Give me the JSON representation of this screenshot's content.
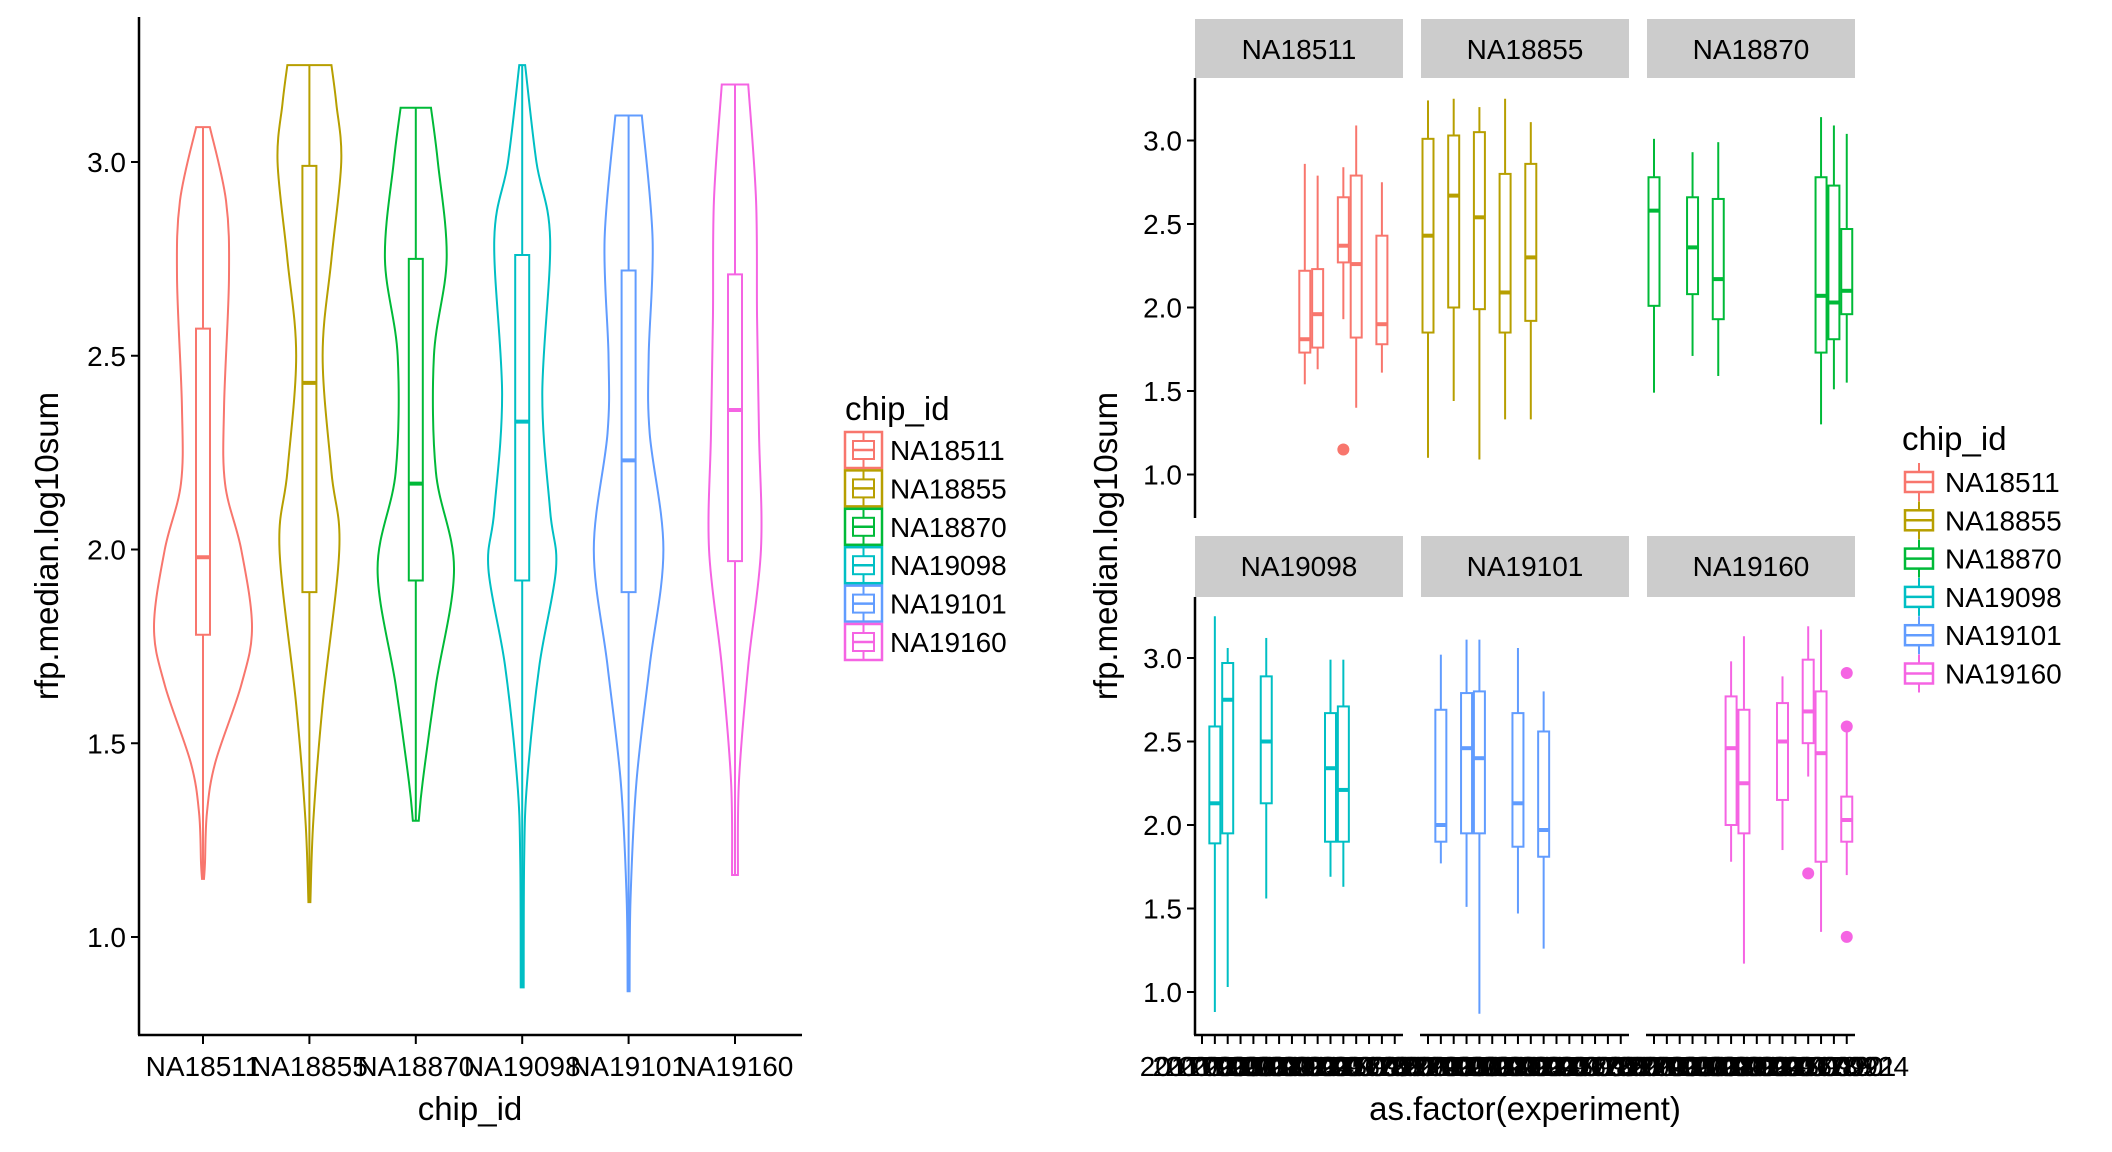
{
  "colors": {
    "NA18511": "#F8766D",
    "NA18855": "#B79F00",
    "NA18870": "#00BA38",
    "NA19098": "#00BFC4",
    "NA19101": "#619CFF",
    "NA19160": "#F564E3",
    "strip_bg": "#CCCCCC",
    "axis": "#000000"
  },
  "chart_data": [
    {
      "type": "violin",
      "title": "",
      "xlabel": "chip_id",
      "ylabel": "rfp.median.log10sum",
      "ylim": [
        0.7,
        3.37
      ],
      "yticks": [
        1.0,
        1.5,
        2.0,
        2.5,
        3.0
      ],
      "ytick_labels": [
        "1.0",
        "1.5",
        "2.0",
        "2.5",
        "3.0"
      ],
      "categories": [
        "NA18511",
        "NA18855",
        "NA18870",
        "NA19098",
        "NA19101",
        "NA19160"
      ],
      "legend": {
        "title": "chip_id",
        "position": "right",
        "entries": [
          "NA18511",
          "NA18855",
          "NA18870",
          "NA19098",
          "NA19101",
          "NA19160"
        ]
      },
      "boxes": [
        {
          "group": "NA18511",
          "min": 1.15,
          "q1": 1.78,
          "median": 1.98,
          "q3": 2.57,
          "max": 3.09
        },
        {
          "group": "NA18855",
          "min": 1.09,
          "q1": 1.89,
          "median": 2.43,
          "q3": 2.99,
          "max": 3.25
        },
        {
          "group": "NA18870",
          "min": 1.3,
          "q1": 1.92,
          "median": 2.17,
          "q3": 2.75,
          "max": 3.14
        },
        {
          "group": "NA19098",
          "min": 0.87,
          "q1": 1.92,
          "median": 2.33,
          "q3": 2.76,
          "max": 3.25
        },
        {
          "group": "NA19101",
          "min": 0.86,
          "q1": 1.89,
          "median": 2.23,
          "q3": 2.72,
          "max": 3.12
        },
        {
          "group": "NA19160",
          "min": 1.16,
          "q1": 1.97,
          "median": 2.36,
          "q3": 2.71,
          "max": 3.2
        }
      ],
      "violin_density": [
        {
          "group": "NA18511",
          "profile": [
            [
              1.15,
              0.02
            ],
            [
              1.19,
              0.04
            ],
            [
              1.32,
              0.08
            ],
            [
              1.45,
              0.25
            ],
            [
              1.65,
              0.78
            ],
            [
              1.8,
              1.0
            ],
            [
              2.0,
              0.78
            ],
            [
              2.17,
              0.45
            ],
            [
              2.37,
              0.43
            ],
            [
              2.7,
              0.53
            ],
            [
              2.9,
              0.47
            ],
            [
              3.09,
              0.14
            ]
          ]
        },
        {
          "group": "NA18855",
          "profile": [
            [
              1.09,
              0.02
            ],
            [
              1.3,
              0.08
            ],
            [
              1.6,
              0.27
            ],
            [
              2.0,
              0.61
            ],
            [
              2.2,
              0.45
            ],
            [
              2.5,
              0.27
            ],
            [
              2.75,
              0.45
            ],
            [
              3.0,
              0.65
            ],
            [
              3.15,
              0.55
            ],
            [
              3.25,
              0.45
            ]
          ]
        },
        {
          "group": "NA18870",
          "profile": [
            [
              1.3,
              0.06
            ],
            [
              1.4,
              0.14
            ],
            [
              1.65,
              0.41
            ],
            [
              1.95,
              0.78
            ],
            [
              2.2,
              0.41
            ],
            [
              2.5,
              0.37
            ],
            [
              2.75,
              0.63
            ],
            [
              3.0,
              0.45
            ],
            [
              3.14,
              0.31
            ]
          ]
        },
        {
          "group": "NA19098",
          "profile": [
            [
              0.87,
              0.03
            ],
            [
              1.2,
              0.04
            ],
            [
              1.4,
              0.1
            ],
            [
              1.7,
              0.35
            ],
            [
              1.95,
              0.69
            ],
            [
              2.1,
              0.57
            ],
            [
              2.4,
              0.41
            ],
            [
              2.8,
              0.57
            ],
            [
              3.0,
              0.29
            ],
            [
              3.25,
              0.06
            ]
          ]
        },
        {
          "group": "NA19101",
          "profile": [
            [
              0.86,
              0.02
            ],
            [
              1.1,
              0.04
            ],
            [
              1.4,
              0.16
            ],
            [
              1.7,
              0.43
            ],
            [
              2.0,
              0.71
            ],
            [
              2.3,
              0.43
            ],
            [
              2.5,
              0.41
            ],
            [
              2.8,
              0.49
            ],
            [
              3.12,
              0.27
            ]
          ]
        },
        {
          "group": "NA19160",
          "profile": [
            [
              1.16,
              0.06
            ],
            [
              1.4,
              0.08
            ],
            [
              1.7,
              0.27
            ],
            [
              2.0,
              0.53
            ],
            [
              2.3,
              0.49
            ],
            [
              2.6,
              0.45
            ],
            [
              2.9,
              0.43
            ],
            [
              3.2,
              0.27
            ]
          ]
        }
      ]
    },
    {
      "type": "boxplot-facets",
      "title": "",
      "xlabel": "as.factor(experiment)",
      "ylabel": "rfp.median.log10sum",
      "ylim": [
        0.7,
        3.37
      ],
      "yticks": [
        1.0,
        1.5,
        2.0,
        2.5,
        3.0
      ],
      "ytick_labels": [
        "1.0",
        "1.5",
        "2.0",
        "2.5",
        "3.0"
      ],
      "x_categories": [
        "20170905",
        "20170906",
        "20170907",
        "20170908",
        "20170910",
        "20170912",
        "20170913",
        "20170914",
        "20170915",
        "20170916",
        "20170917",
        "20170918",
        "20170919",
        "20170920",
        "20170921",
        "20170924"
      ],
      "facets": [
        "NA18511",
        "NA18855",
        "NA18870",
        "NA19098",
        "NA19101",
        "NA19160"
      ],
      "legend": {
        "title": "chip_id",
        "position": "right",
        "entries": [
          "NA18511",
          "NA18855",
          "NA18870",
          "NA19098",
          "NA19101",
          "NA19160"
        ]
      },
      "boxes": [
        {
          "facet": "NA18511",
          "x_index": 8,
          "min": 1.54,
          "q1": 1.73,
          "median": 1.81,
          "q3": 2.22,
          "max": 2.86,
          "outliers": []
        },
        {
          "facet": "NA18511",
          "x_index": 9,
          "min": 1.63,
          "q1": 1.76,
          "median": 1.96,
          "q3": 2.23,
          "max": 2.79,
          "outliers": []
        },
        {
          "facet": "NA18511",
          "x_index": 11,
          "min": 1.93,
          "q1": 2.27,
          "median": 2.37,
          "q3": 2.66,
          "max": 2.84,
          "outliers": [
            1.15
          ]
        },
        {
          "facet": "NA18511",
          "x_index": 12,
          "min": 1.4,
          "q1": 1.82,
          "median": 2.26,
          "q3": 2.79,
          "max": 3.09,
          "outliers": []
        },
        {
          "facet": "NA18511",
          "x_index": 14,
          "min": 1.61,
          "q1": 1.78,
          "median": 1.9,
          "q3": 2.43,
          "max": 2.75,
          "outliers": []
        },
        {
          "facet": "NA18855",
          "x_index": 0,
          "min": 1.1,
          "q1": 1.85,
          "median": 2.43,
          "q3": 3.01,
          "max": 3.24,
          "outliers": []
        },
        {
          "facet": "NA18855",
          "x_index": 2,
          "min": 1.44,
          "q1": 2.0,
          "median": 2.67,
          "q3": 3.03,
          "max": 3.25,
          "outliers": []
        },
        {
          "facet": "NA18855",
          "x_index": 4,
          "min": 1.09,
          "q1": 1.99,
          "median": 2.54,
          "q3": 3.05,
          "max": 3.2,
          "outliers": []
        },
        {
          "facet": "NA18855",
          "x_index": 6,
          "min": 1.33,
          "q1": 1.85,
          "median": 2.09,
          "q3": 2.8,
          "max": 3.25,
          "outliers": []
        },
        {
          "facet": "NA18855",
          "x_index": 8,
          "min": 1.33,
          "q1": 1.92,
          "median": 2.3,
          "q3": 2.86,
          "max": 3.11,
          "outliers": []
        },
        {
          "facet": "NA18870",
          "x_index": 0,
          "min": 1.49,
          "q1": 2.01,
          "median": 2.58,
          "q3": 2.78,
          "max": 3.01,
          "outliers": []
        },
        {
          "facet": "NA18870",
          "x_index": 3,
          "min": 1.71,
          "q1": 2.08,
          "median": 2.36,
          "q3": 2.66,
          "max": 2.93,
          "outliers": []
        },
        {
          "facet": "NA18870",
          "x_index": 5,
          "min": 1.59,
          "q1": 1.93,
          "median": 2.17,
          "q3": 2.65,
          "max": 2.99,
          "outliers": []
        },
        {
          "facet": "NA18870",
          "x_index": 13,
          "min": 1.3,
          "q1": 1.73,
          "median": 2.07,
          "q3": 2.78,
          "max": 3.14,
          "outliers": []
        },
        {
          "facet": "NA18870",
          "x_index": 14,
          "min": 1.51,
          "q1": 1.81,
          "median": 2.03,
          "q3": 2.73,
          "max": 3.09,
          "outliers": []
        },
        {
          "facet": "NA18870",
          "x_index": 15,
          "min": 1.55,
          "q1": 1.96,
          "median": 2.1,
          "q3": 2.47,
          "max": 3.04,
          "outliers": []
        },
        {
          "facet": "NA19098",
          "x_index": 1,
          "min": 0.88,
          "q1": 1.89,
          "median": 2.13,
          "q3": 2.59,
          "max": 3.25,
          "outliers": []
        },
        {
          "facet": "NA19098",
          "x_index": 2,
          "min": 1.03,
          "q1": 1.95,
          "median": 2.75,
          "q3": 2.97,
          "max": 3.06,
          "outliers": []
        },
        {
          "facet": "NA19098",
          "x_index": 5,
          "min": 1.56,
          "q1": 2.13,
          "median": 2.5,
          "q3": 2.89,
          "max": 3.12,
          "outliers": []
        },
        {
          "facet": "NA19098",
          "x_index": 10,
          "min": 1.69,
          "q1": 1.9,
          "median": 2.34,
          "q3": 2.67,
          "max": 2.99,
          "outliers": []
        },
        {
          "facet": "NA19098",
          "x_index": 11,
          "min": 1.63,
          "q1": 1.9,
          "median": 2.21,
          "q3": 2.71,
          "max": 2.99,
          "outliers": []
        },
        {
          "facet": "NA19101",
          "x_index": 1,
          "min": 1.77,
          "q1": 1.9,
          "median": 2.0,
          "q3": 2.69,
          "max": 3.02,
          "outliers": []
        },
        {
          "facet": "NA19101",
          "x_index": 3,
          "min": 1.51,
          "q1": 1.95,
          "median": 2.46,
          "q3": 2.79,
          "max": 3.11,
          "outliers": []
        },
        {
          "facet": "NA19101",
          "x_index": 4,
          "min": 0.87,
          "q1": 1.95,
          "median": 2.4,
          "q3": 2.8,
          "max": 3.11,
          "outliers": []
        },
        {
          "facet": "NA19101",
          "x_index": 7,
          "min": 1.47,
          "q1": 1.87,
          "median": 2.13,
          "q3": 2.67,
          "max": 3.06,
          "outliers": []
        },
        {
          "facet": "NA19101",
          "x_index": 9,
          "min": 1.26,
          "q1": 1.81,
          "median": 1.97,
          "q3": 2.56,
          "max": 2.8,
          "outliers": []
        },
        {
          "facet": "NA19160",
          "x_index": 6,
          "min": 1.78,
          "q1": 2.0,
          "median": 2.46,
          "q3": 2.77,
          "max": 2.98,
          "outliers": []
        },
        {
          "facet": "NA19160",
          "x_index": 7,
          "min": 1.17,
          "q1": 1.95,
          "median": 2.25,
          "q3": 2.69,
          "max": 3.13,
          "outliers": []
        },
        {
          "facet": "NA19160",
          "x_index": 10,
          "min": 1.85,
          "q1": 2.15,
          "median": 2.5,
          "q3": 2.73,
          "max": 2.89,
          "outliers": []
        },
        {
          "facet": "NA19160",
          "x_index": 12,
          "min": 2.29,
          "q1": 2.49,
          "median": 2.68,
          "q3": 2.99,
          "max": 3.19,
          "outliers": [
            1.71
          ]
        },
        {
          "facet": "NA19160",
          "x_index": 13,
          "min": 1.36,
          "q1": 1.78,
          "median": 2.43,
          "q3": 2.8,
          "max": 3.17,
          "outliers": []
        },
        {
          "facet": "NA19160",
          "x_index": 15,
          "min": 1.7,
          "q1": 1.9,
          "median": 2.03,
          "q3": 2.17,
          "max": 2.59,
          "outliers": [
            2.91,
            2.59,
            1.33
          ]
        }
      ]
    }
  ]
}
